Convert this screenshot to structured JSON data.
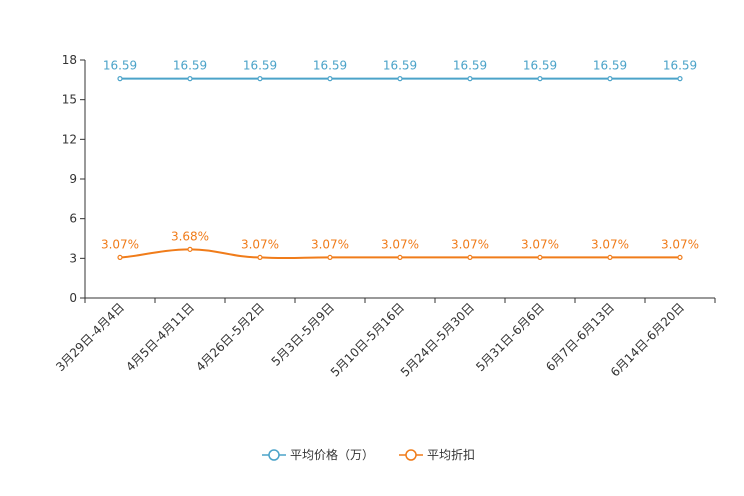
{
  "chart_data": {
    "type": "line",
    "title": "",
    "xlabel": "",
    "ylabel": "",
    "ylim": [
      0,
      18
    ],
    "yticks": [
      0,
      3,
      6,
      9,
      12,
      15,
      18
    ],
    "grid": false,
    "legend_position": "bottom-center",
    "categories": [
      "3月29日-4月4日",
      "4月5日-4月11日",
      "4月26日-5月2日",
      "5月3日-5月9日",
      "5月10日-5月16日",
      "5月24日-5月30日",
      "5月31日-6月6日",
      "6月7日-6月13日",
      "6月14日-6月20日"
    ],
    "series": [
      {
        "name": "平均价格（万）",
        "color": "#4ba3c9",
        "values": [
          16.59,
          16.59,
          16.59,
          16.59,
          16.59,
          16.59,
          16.59,
          16.59,
          16.59
        ],
        "labels": [
          "16.59",
          "16.59",
          "16.59",
          "16.59",
          "16.59",
          "16.59",
          "16.59",
          "16.59",
          "16.59"
        ]
      },
      {
        "name": "平均折扣",
        "color": "#f07c1a",
        "values": [
          3.07,
          3.68,
          3.07,
          3.07,
          3.07,
          3.07,
          3.07,
          3.07,
          3.07
        ],
        "labels": [
          "3.07%",
          "3.68%",
          "3.07%",
          "3.07%",
          "3.07%",
          "3.07%",
          "3.07%",
          "3.07%",
          "3.07%"
        ]
      }
    ]
  }
}
